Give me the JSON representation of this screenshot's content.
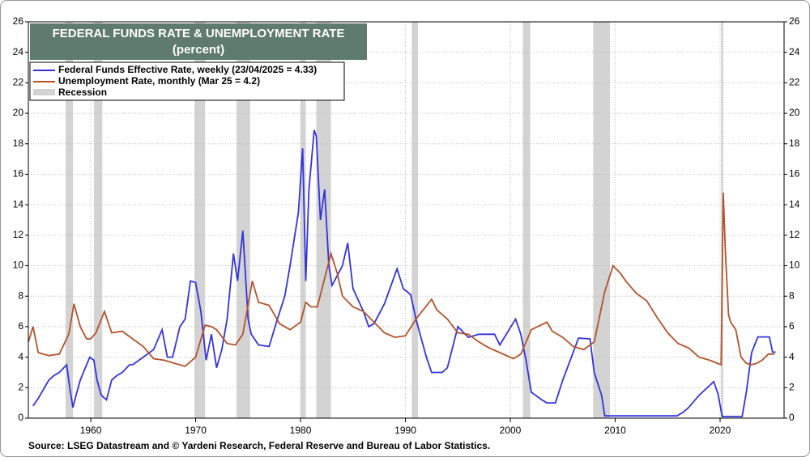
{
  "chart_data": {
    "type": "line",
    "title": "FEDERAL FUNDS RATE & UNEMPLOYMENT RATE",
    "subtitle": "(percent)",
    "source": "Source: LSEG Datastream and © Yardeni Research, Federal Reserve and Bureau of Labor Statistics.",
    "xlim": [
      1954.05,
      2026.1
    ],
    "xticks": [
      1960,
      1970,
      1980,
      1990,
      2000,
      2010,
      2020
    ],
    "ylim": [
      0,
      26
    ],
    "yticks": [
      0,
      2,
      4,
      6,
      8,
      10,
      12,
      14,
      16,
      18,
      20,
      22,
      24,
      26
    ],
    "y2lim": [
      0,
      26
    ],
    "y2ticks": [
      0,
      2,
      4,
      6,
      8,
      10,
      12,
      14,
      16,
      18,
      20,
      22,
      24,
      26
    ],
    "grid": true,
    "recession": {
      "name": "Recession",
      "color": "#d3d3d3",
      "periods": [
        [
          1957.6,
          1958.3
        ],
        [
          1960.3,
          1961.1
        ],
        [
          1969.9,
          1970.9
        ],
        [
          1973.9,
          1975.2
        ],
        [
          1980.0,
          1980.5
        ],
        [
          1981.5,
          1982.9
        ],
        [
          1990.6,
          1991.2
        ],
        [
          2001.2,
          2001.9
        ],
        [
          2007.9,
          2009.5
        ],
        [
          2020.1,
          2020.3
        ]
      ]
    },
    "series": [
      {
        "name": "Federal Funds Effective Rate, weekly (23/04/2025 = 4.33)",
        "color": "#3333dd",
        "x": [
          1954.5,
          1955,
          1955.5,
          1956,
          1956.5,
          1957,
          1957.7,
          1958.0,
          1958.3,
          1958.6,
          1959,
          1959.6,
          1959.9,
          1960.3,
          1960.6,
          1961,
          1961.5,
          1962,
          1962.5,
          1963,
          1963.7,
          1964,
          1965,
          1966,
          1966.8,
          1967.3,
          1967.8,
          1968.5,
          1969,
          1969.5,
          1970,
          1970.5,
          1971,
          1971.5,
          1972,
          1972.5,
          1973,
          1973.6,
          1974,
          1974.5,
          1975,
          1975.3,
          1976,
          1977,
          1977.8,
          1978.5,
          1979,
          1979.8,
          1980.2,
          1980.5,
          1980.8,
          1981.3,
          1981.5,
          1981.9,
          1982.3,
          1982.7,
          1983,
          1984,
          1984.5,
          1985,
          1986,
          1986.5,
          1987,
          1988,
          1989.2,
          1989.8,
          1990.5,
          1991,
          1992,
          1992.5,
          1993.5,
          1994,
          1995,
          1996,
          1997,
          1998.5,
          1999,
          2000.5,
          2001,
          2001.5,
          2002,
          2003,
          2003.5,
          2004.3,
          2005,
          2006.5,
          2007.6,
          2008,
          2008.7,
          2009,
          2012,
          2015.9,
          2016.5,
          2017,
          2018,
          2019.4,
          2019.8,
          2020.2,
          2022.1,
          2022.5,
          2023,
          2023.6,
          2024.7,
          2025,
          2025.3
        ],
        "values": [
          0.8,
          1.3,
          1.9,
          2.5,
          2.8,
          3.0,
          3.5,
          2.0,
          0.7,
          1.5,
          2.5,
          3.5,
          4.0,
          3.8,
          2.5,
          1.5,
          1.2,
          2.5,
          2.8,
          3.0,
          3.5,
          3.5,
          4.0,
          4.5,
          5.8,
          4.0,
          4.0,
          6.0,
          6.5,
          9.0,
          8.9,
          7.0,
          3.8,
          5.5,
          3.3,
          4.5,
          6.5,
          10.8,
          9.0,
          12.3,
          6.5,
          5.5,
          4.8,
          4.7,
          6.5,
          8.0,
          10.0,
          13.5,
          17.7,
          9.0,
          15.0,
          18.9,
          18.5,
          13.0,
          15.0,
          10.0,
          8.7,
          10.0,
          11.5,
          8.5,
          7.0,
          6.0,
          6.2,
          7.5,
          9.8,
          8.5,
          8.1,
          6.5,
          4.0,
          3.0,
          3.0,
          3.3,
          6.0,
          5.3,
          5.5,
          5.5,
          4.8,
          6.5,
          5.5,
          3.8,
          1.7,
          1.2,
          1.0,
          1.0,
          2.5,
          5.25,
          5.2,
          3.0,
          1.5,
          0.15,
          0.15,
          0.15,
          0.4,
          0.7,
          1.5,
          2.4,
          1.6,
          0.1,
          0.1,
          1.7,
          4.3,
          5.33,
          5.33,
          4.33,
          4.33
        ]
      },
      {
        "name": "Unemployment Rate, monthly (Mar 25 = 4.2)",
        "color": "#b5522a",
        "x": [
          1954.05,
          1954.5,
          1955,
          1956,
          1957,
          1957.9,
          1958.4,
          1959,
          1959.6,
          1960,
          1960.5,
          1961.3,
          1962,
          1963,
          1964,
          1965,
          1966,
          1967,
          1968,
          1969,
          1970,
          1970.9,
          1971.5,
          1972,
          1973,
          1973.8,
          1974.5,
          1975.4,
          1976,
          1977,
          1978,
          1979,
          1980.0,
          1980.5,
          1981,
          1981.6,
          1982.9,
          1983.5,
          1984,
          1985,
          1986,
          1987,
          1988,
          1989,
          1990,
          1991,
          1992.5,
          1993,
          1994,
          1995,
          1996,
          1997,
          1998,
          1999,
          2000.3,
          2001,
          2002,
          2003.5,
          2004,
          2005,
          2006,
          2007,
          2008,
          2009,
          2009.8,
          2010.5,
          2011,
          2012,
          2013,
          2014,
          2015,
          2016,
          2017,
          2018,
          2019,
          2020.1,
          2020.3,
          2020.5,
          2020.8,
          2021,
          2021.5,
          2022,
          2022.5,
          2023,
          2023.5,
          2024,
          2024.6,
          2025.2
        ],
        "values": [
          5.0,
          6.0,
          4.3,
          4.1,
          4.2,
          5.5,
          7.5,
          6.0,
          5.2,
          5.2,
          5.6,
          7.0,
          5.6,
          5.7,
          5.2,
          4.7,
          3.9,
          3.8,
          3.6,
          3.4,
          4.0,
          6.1,
          6.0,
          5.8,
          4.9,
          4.8,
          5.5,
          9.0,
          7.6,
          7.4,
          6.2,
          5.8,
          6.3,
          7.6,
          7.3,
          7.3,
          10.8,
          9.5,
          8.0,
          7.3,
          7.0,
          6.3,
          5.6,
          5.3,
          5.4,
          6.5,
          7.8,
          7.1,
          6.5,
          5.6,
          5.5,
          5.0,
          4.6,
          4.3,
          3.9,
          4.2,
          5.8,
          6.3,
          5.7,
          5.3,
          4.7,
          4.5,
          5.0,
          8.3,
          10.0,
          9.5,
          9.0,
          8.2,
          7.7,
          6.6,
          5.6,
          4.9,
          4.6,
          4.0,
          3.8,
          3.5,
          14.8,
          11.0,
          6.8,
          6.3,
          5.8,
          4.0,
          3.6,
          3.5,
          3.6,
          3.8,
          4.2,
          4.2
        ]
      }
    ]
  }
}
